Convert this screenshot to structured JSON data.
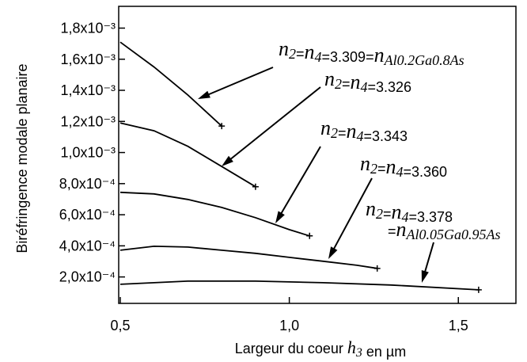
{
  "chart_data": {
    "type": "line",
    "xlabel": "Largeur du coeur h3 en µm",
    "ylabel": "Biréfringence modale planaire",
    "xlim": [
      0.5,
      1.675
    ],
    "ylim": [
      3e-05,
      0.00194
    ],
    "xticks": [
      {
        "value": 0.5,
        "label": "0,5"
      },
      {
        "value": 1.0,
        "label": "1,0"
      },
      {
        "value": 1.5,
        "label": "1,5"
      }
    ],
    "yticks": [
      {
        "value": 0.0002,
        "label": "2,0x10⁻⁴"
      },
      {
        "value": 0.0004,
        "label": "4,0x10⁻⁴"
      },
      {
        "value": 0.0006,
        "label": "6,0x10⁻⁴"
      },
      {
        "value": 0.0008,
        "label": "8,0x10⁻⁴"
      },
      {
        "value": 0.001,
        "label": "1,0x10⁻³"
      },
      {
        "value": 0.0012,
        "label": "1,2x10⁻³"
      },
      {
        "value": 0.0014,
        "label": "1,4x10⁻³"
      },
      {
        "value": 0.0016,
        "label": "1,6x10⁻³"
      },
      {
        "value": 0.0018,
        "label": "1,8x10⁻³"
      }
    ],
    "series": [
      {
        "name": "n2=n4=3.309=nAl0.2Ga0.8As",
        "color": "#000000",
        "x": [
          0.5,
          0.6,
          0.7,
          0.8
        ],
        "values": [
          0.00171,
          0.00155,
          0.00137,
          0.00117
        ]
      },
      {
        "name": "n2=n4=3.326",
        "color": "#000000",
        "x": [
          0.5,
          0.6,
          0.7,
          0.8,
          0.9
        ],
        "values": [
          0.00119,
          0.00114,
          0.00104,
          0.00091,
          0.00078
        ]
      },
      {
        "name": "n2=n4=3.343",
        "color": "#000000",
        "x": [
          0.5,
          0.6,
          0.7,
          0.8,
          0.9,
          1.0,
          1.06
        ],
        "values": [
          0.000744,
          0.000734,
          0.000698,
          0.000647,
          0.000581,
          0.000504,
          0.000464
        ]
      },
      {
        "name": "n2=n4=3.360",
        "color": "#000000",
        "x": [
          0.5,
          0.6,
          0.7,
          0.8,
          0.9,
          1.0,
          1.1,
          1.2,
          1.26
        ],
        "values": [
          0.000372,
          0.000397,
          0.000392,
          0.000372,
          0.000352,
          0.000326,
          0.000301,
          0.000275,
          0.000255
        ]
      },
      {
        "name": "n2=n4=3.378",
        "name_continued": "=nAl0.05Ga0.95As",
        "color": "#000000",
        "x": [
          0.5,
          0.7,
          0.9,
          1.1,
          1.3,
          1.56
        ],
        "values": [
          0.000153,
          0.000173,
          0.000173,
          0.000163,
          0.000148,
          0.000117
        ]
      }
    ]
  }
}
